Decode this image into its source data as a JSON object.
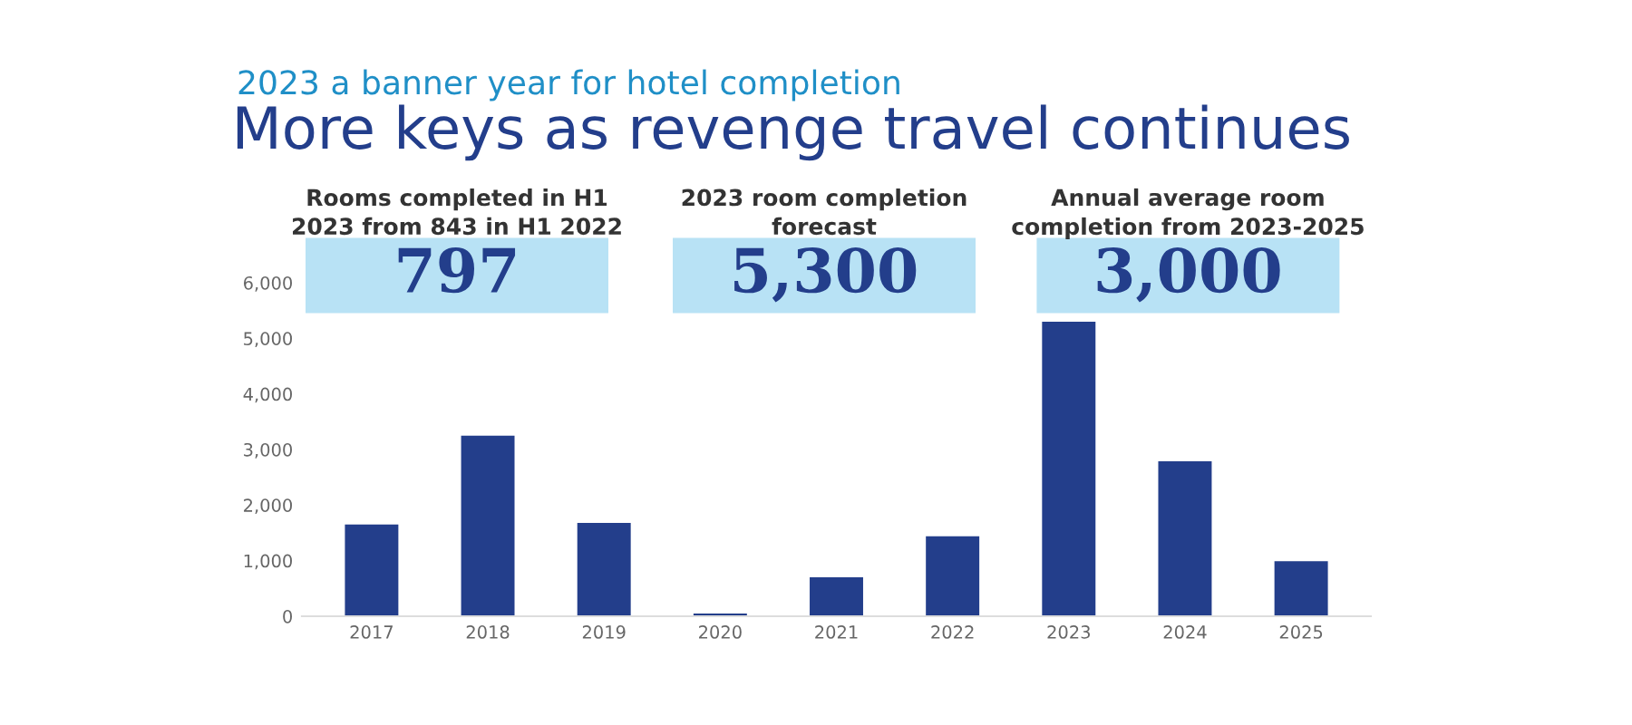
{
  "chart_data": {
    "type": "bar",
    "subtitle": "2023 a banner year for hotel completion",
    "title": "More keys as revenge travel continues",
    "categories": [
      "2017",
      "2018",
      "2019",
      "2020",
      "2021",
      "2022",
      "2023",
      "2024",
      "2025"
    ],
    "values": [
      1650,
      3250,
      1680,
      50,
      700,
      1440,
      5300,
      2790,
      990
    ],
    "color": "#233e8b",
    "ylim": [
      0,
      6000
    ],
    "yticks": [
      {
        "value": 0,
        "label": "0"
      },
      {
        "value": 1000,
        "label": "1,000"
      },
      {
        "value": 2000,
        "label": "2,000"
      },
      {
        "value": 3000,
        "label": "3,000"
      },
      {
        "value": 4000,
        "label": "4,000"
      },
      {
        "value": 5000,
        "label": "5,000"
      },
      {
        "value": 6000,
        "label": "6,000"
      }
    ],
    "grid": false,
    "annotations": [
      "Rooms completed in H1\n2023 from 843 in H1 2022",
      "797",
      "2023 room completion\nforecast",
      "5,300",
      "Annual average room\ncompletion from 2023-2025",
      "3,000"
    ]
  }
}
